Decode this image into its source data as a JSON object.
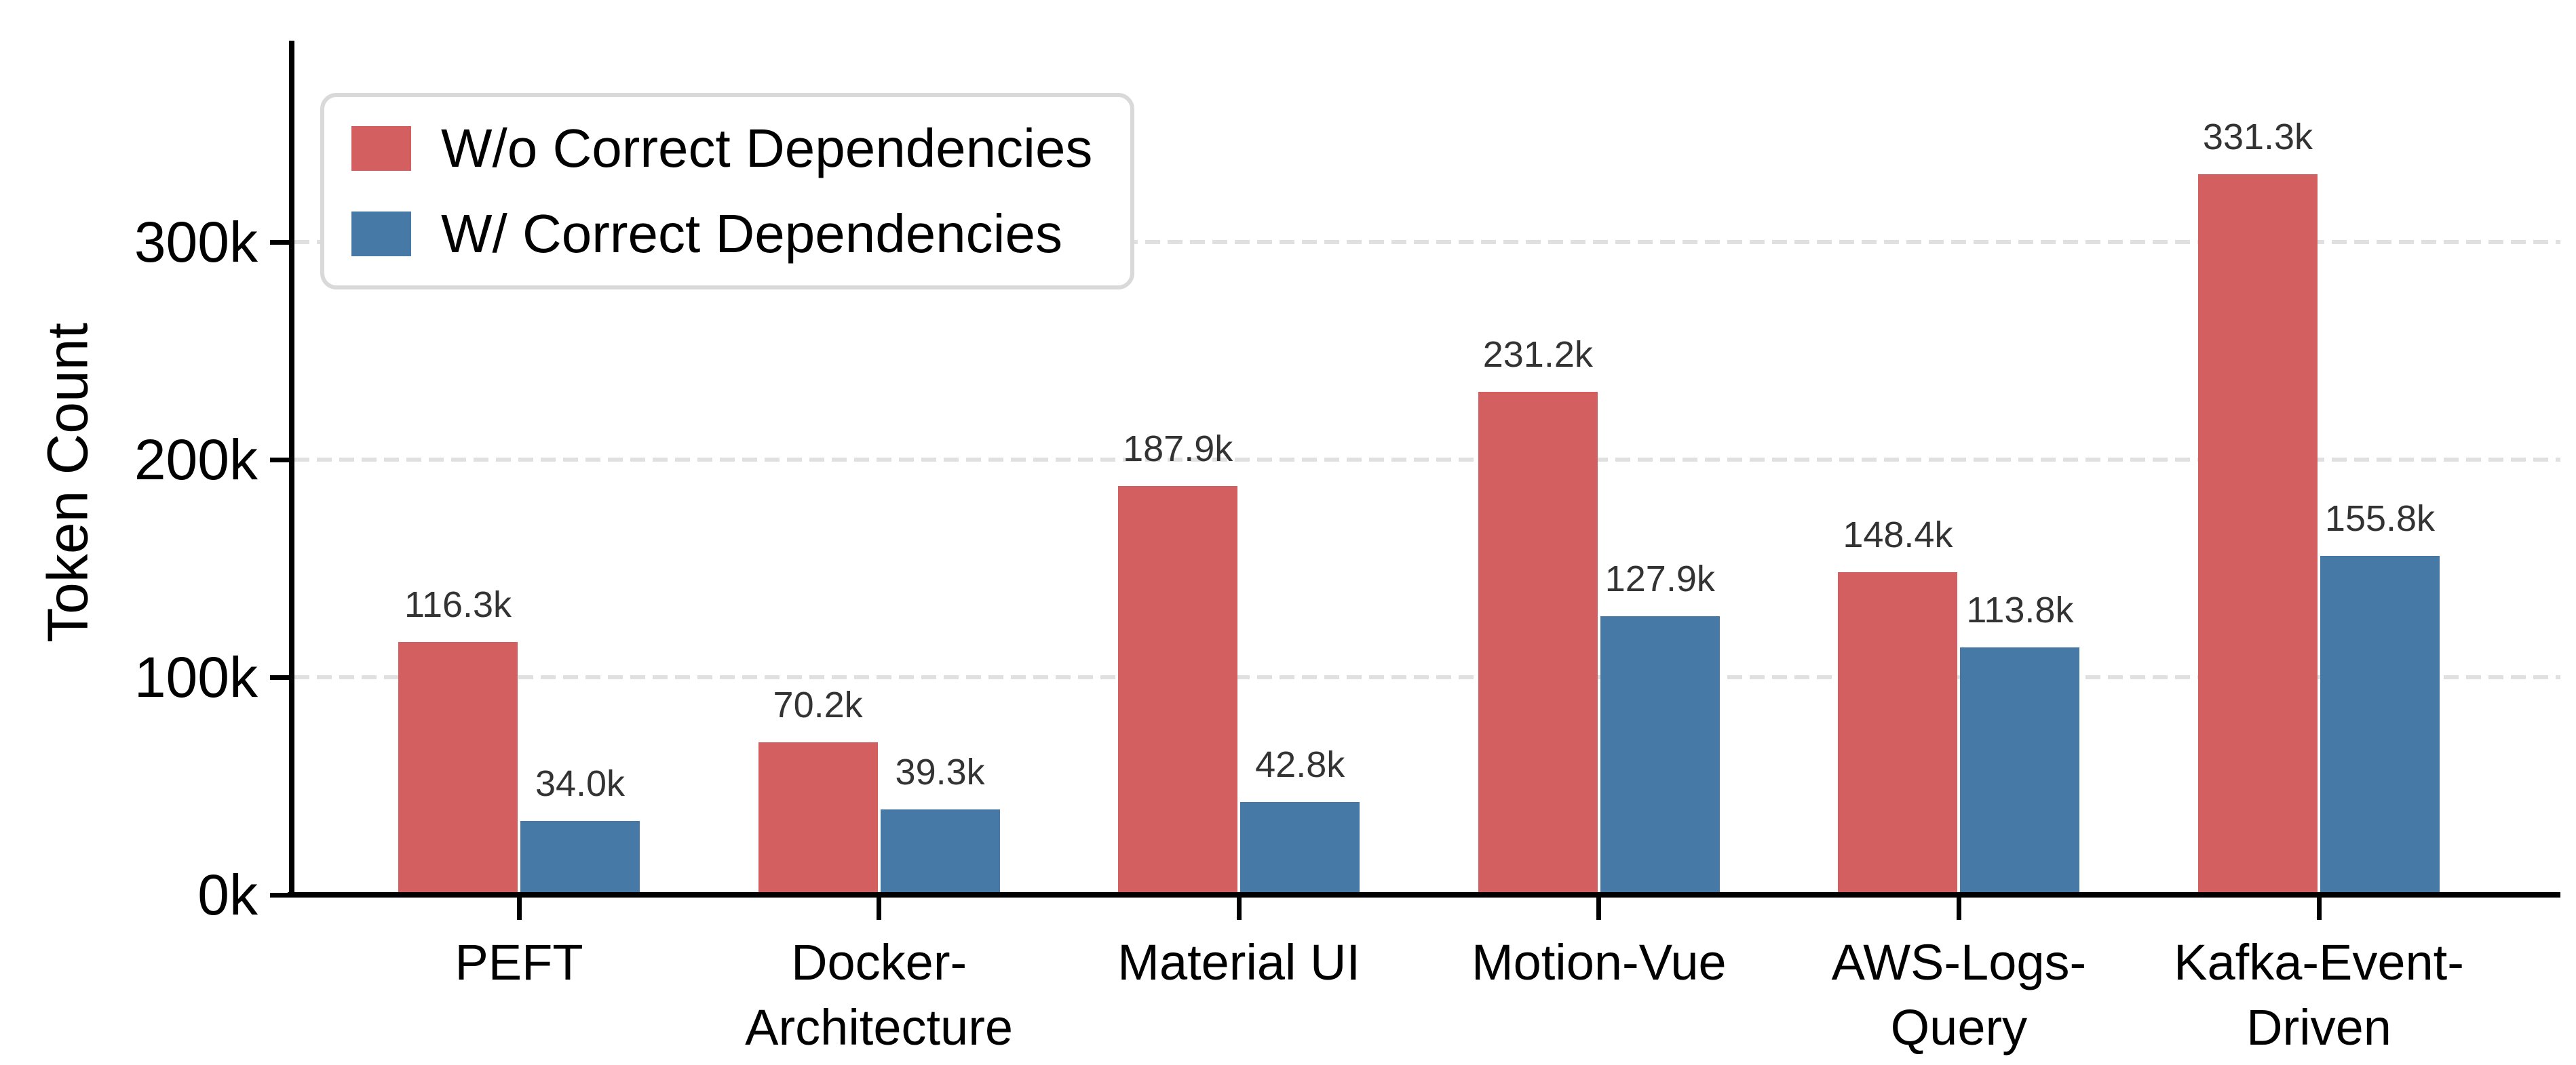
{
  "chart_data": {
    "type": "bar",
    "title": "",
    "ylabel": "Token Count",
    "xlabel": "",
    "unit": "thousands of tokens",
    "categories": [
      "PEFT",
      "Docker-Architecture",
      "Material UI",
      "Motion-Vue",
      "AWS-Logs-Query",
      "Kafka-Event-Driven"
    ],
    "category_label_lines": [
      [
        "PEFT"
      ],
      [
        "Docker-",
        "Architecture"
      ],
      [
        "Material UI"
      ],
      [
        "Motion-Vue"
      ],
      [
        "AWS-Logs-",
        "Query"
      ],
      [
        "Kafka-Event-",
        "Driven"
      ]
    ],
    "series": [
      {
        "name": "W/o Correct Dependencies",
        "color": "#d35f61",
        "values_k": [
          116.3,
          70.2,
          187.9,
          231.2,
          148.4,
          331.3
        ],
        "value_labels": [
          "116.3k",
          "70.2k",
          "187.9k",
          "231.2k",
          "148.4k",
          "331.3k"
        ]
      },
      {
        "name": "W/ Correct Dependencies",
        "color": "#4779a7",
        "values_k": [
          34.0,
          39.3,
          42.8,
          127.9,
          113.8,
          155.8
        ],
        "value_labels": [
          "34.0k",
          "39.3k",
          "42.8k",
          "127.9k",
          "113.8k",
          "155.8k"
        ]
      }
    ],
    "yticks": [
      {
        "value_k": 0,
        "label": "0k"
      },
      {
        "value_k": 100,
        "label": "100k"
      },
      {
        "value_k": 200,
        "label": "200k"
      },
      {
        "value_k": 300,
        "label": "300k"
      }
    ],
    "ylim_k": [
      0,
      392
    ],
    "grid": "horizontal dashed lines at 100k, 200k, 300k",
    "legend_position": "upper left",
    "style": {
      "grid_color": "#e0e0e0",
      "axis_color": "#000000",
      "tick_label_color": "#000000",
      "value_label_color": "#333333",
      "legend_border_color": "#d9d9d9",
      "background_color": "#ffffff"
    }
  }
}
